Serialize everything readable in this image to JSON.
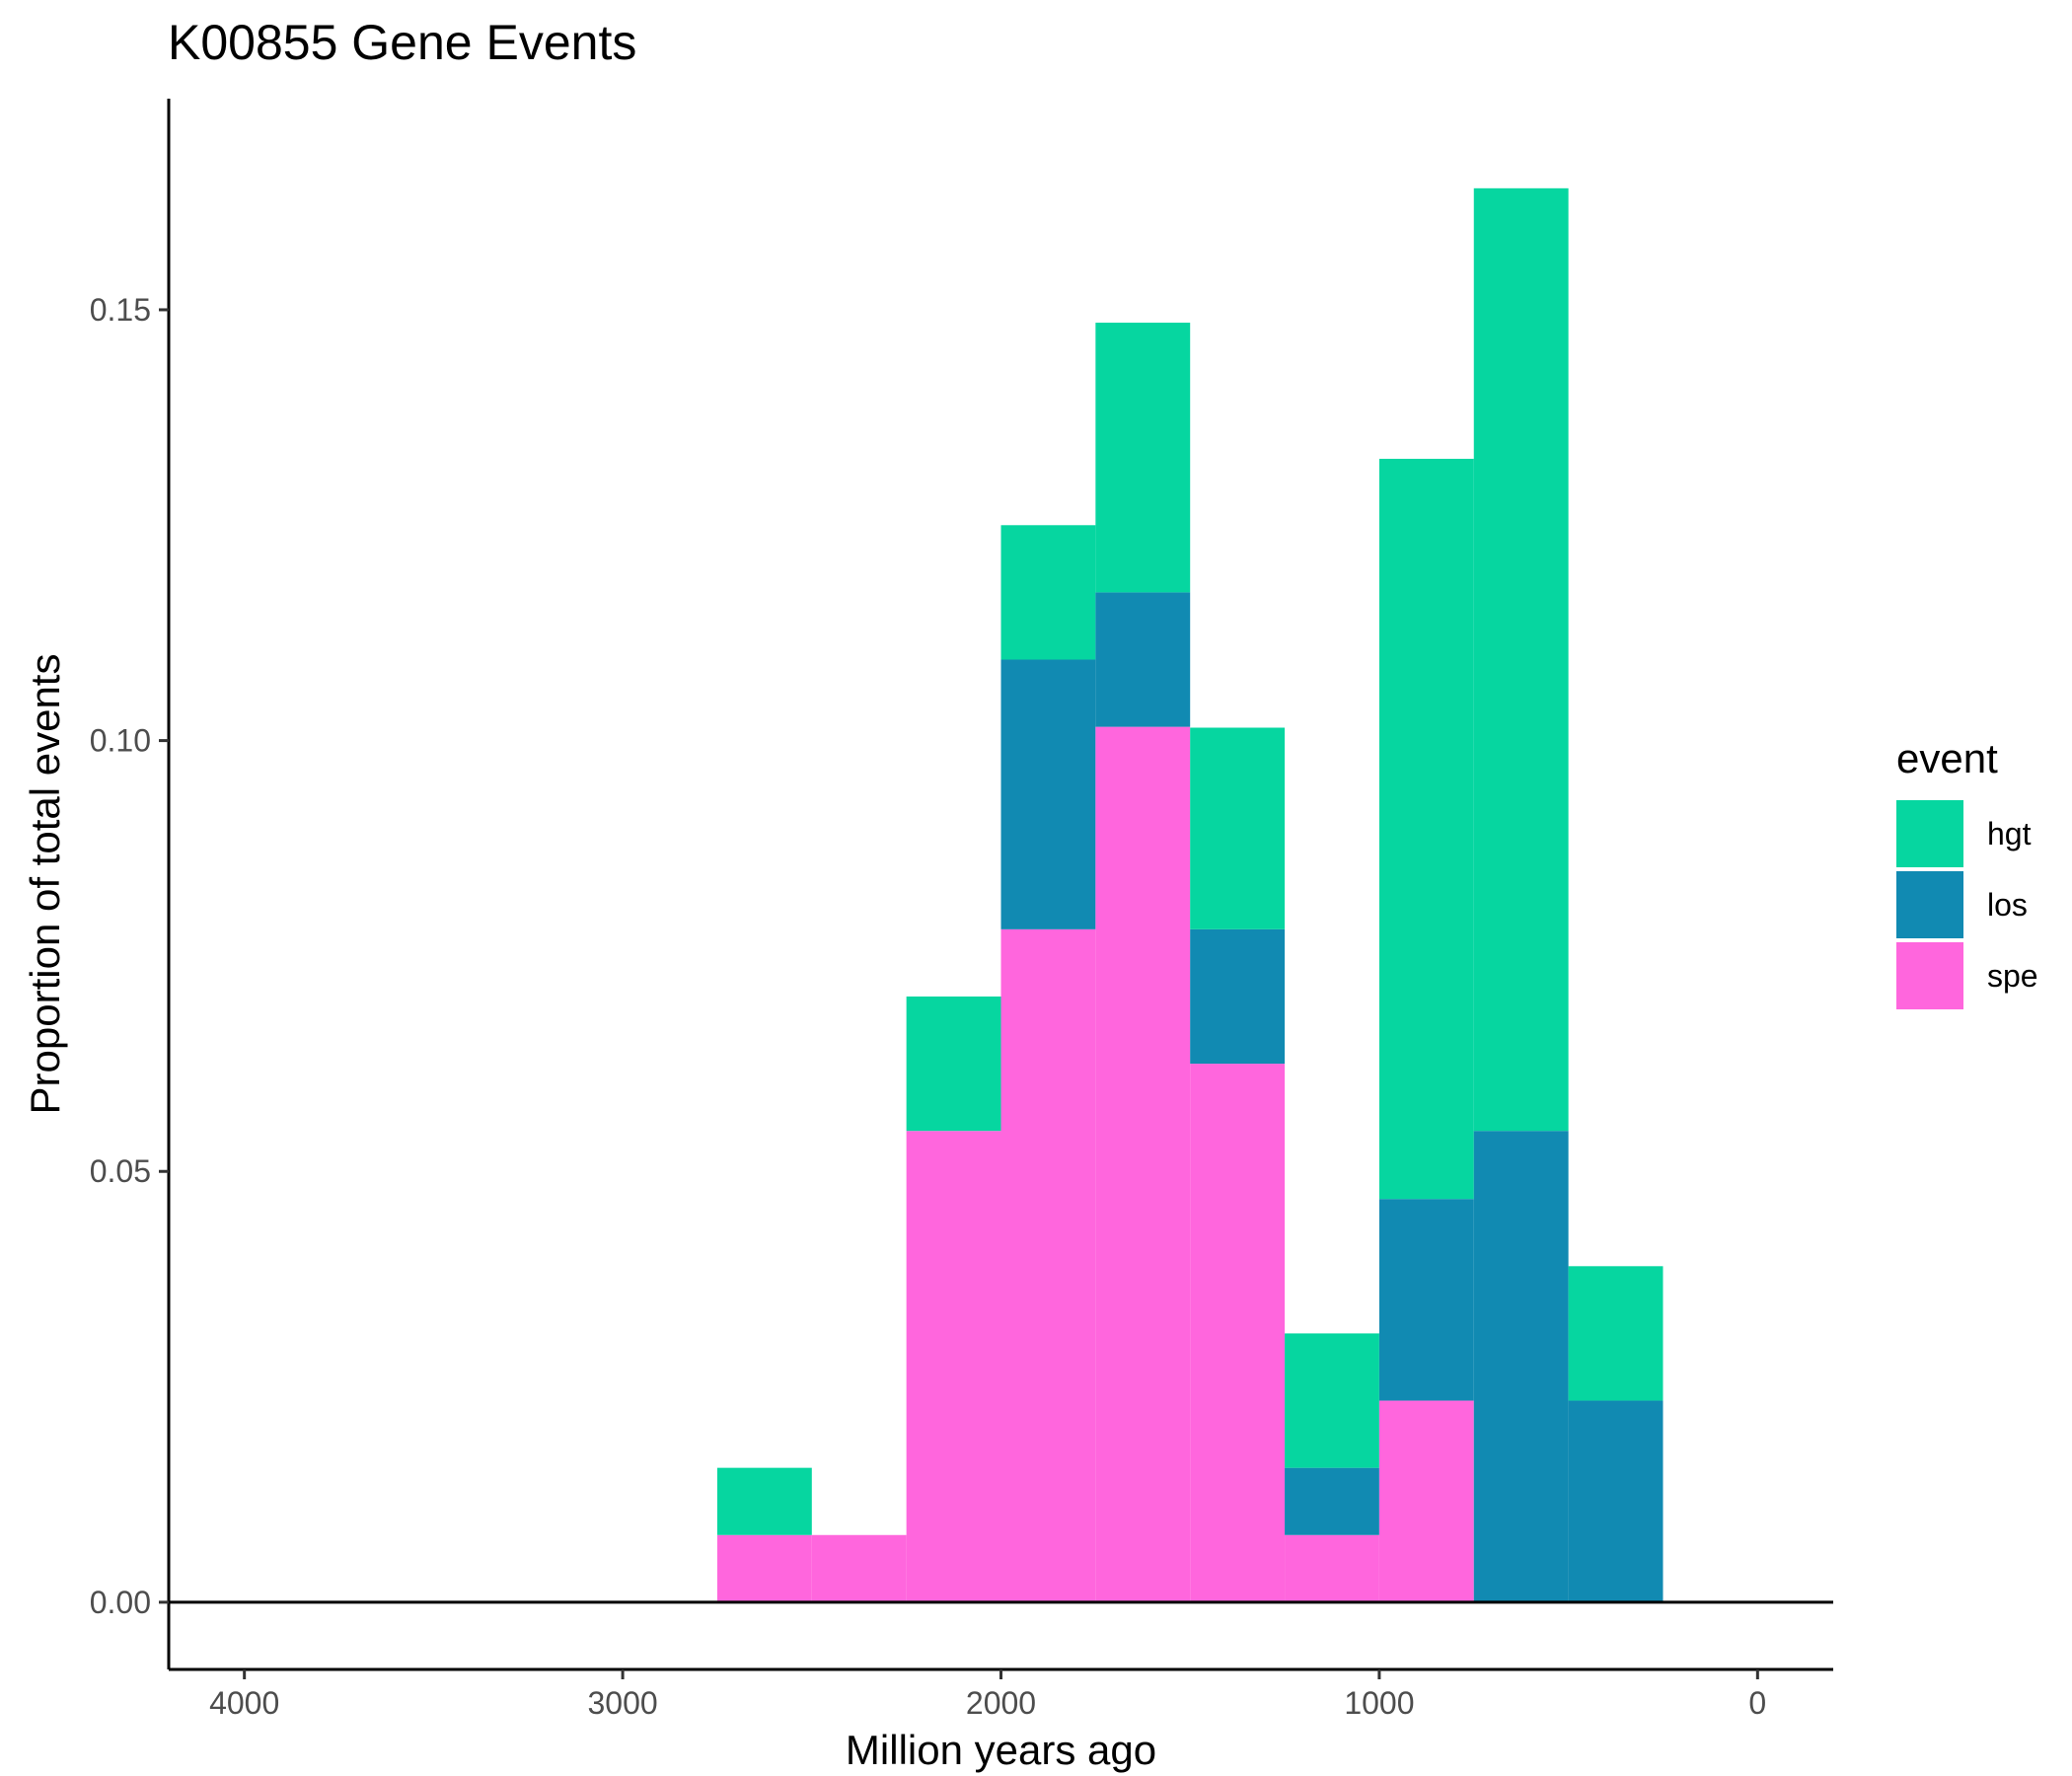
{
  "chart_data": {
    "type": "bar",
    "stacked": true,
    "title": "K00855 Gene Events",
    "xlabel": "Million years ago",
    "ylabel": "Proportion of total events",
    "x_reversed": true,
    "xlim": [
      4200,
      -200
    ],
    "ylim": [
      -0.0078,
      0.1745
    ],
    "x_ticks": [
      4000,
      3000,
      2000,
      1000,
      0
    ],
    "x_tick_labels": [
      "4000",
      "3000",
      "2000",
      "1000",
      "0"
    ],
    "y_ticks": [
      0.0,
      0.05,
      0.1,
      0.15
    ],
    "y_tick_labels": [
      "0.00",
      "0.05",
      "0.10",
      "0.15"
    ],
    "bin_width": 250,
    "bin_centers": [
      2625,
      2375,
      2125,
      1875,
      1625,
      1375,
      1125,
      875,
      625,
      375
    ],
    "series": [
      {
        "name": "spe",
        "color": "#FF66DD",
        "values": [
          0.0078,
          0.0078,
          0.0547,
          0.0781,
          0.1016,
          0.0625,
          0.0078,
          0.0234,
          0.0,
          0.0
        ]
      },
      {
        "name": "los",
        "color": "#118AB2",
        "values": [
          0.0,
          0.0,
          0.0,
          0.0313,
          0.0156,
          0.0156,
          0.0078,
          0.0234,
          0.0547,
          0.0234
        ]
      },
      {
        "name": "hgt",
        "color": "#06D6A0",
        "values": [
          0.0078,
          0.0,
          0.0156,
          0.0156,
          0.0313,
          0.0234,
          0.0156,
          0.0859,
          0.1094,
          0.0156
        ]
      }
    ],
    "legend": {
      "title": "event",
      "position": "right",
      "entries": [
        {
          "label": "hgt",
          "color": "#06D6A0"
        },
        {
          "label": "los",
          "color": "#118AB2"
        },
        {
          "label": "spe",
          "color": "#FF66DD"
        }
      ]
    },
    "grid": false
  }
}
